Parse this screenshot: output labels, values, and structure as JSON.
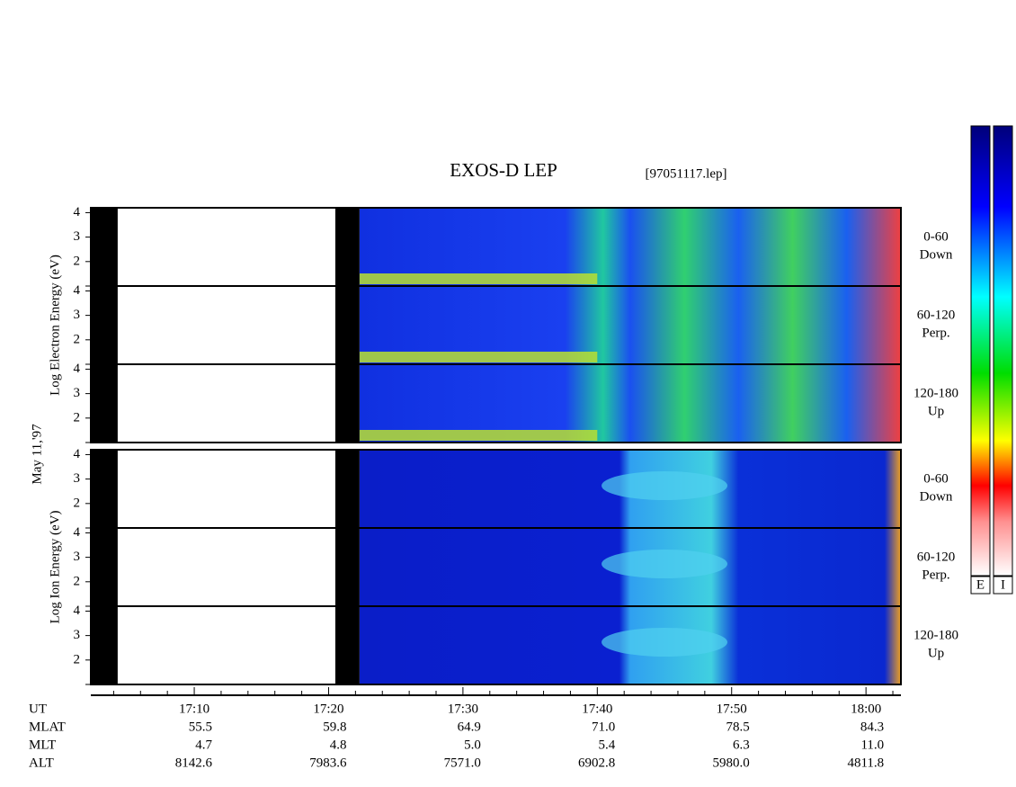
{
  "chart_data": {
    "type": "spectrogram",
    "title": "EXOS-D LEP",
    "file": "[97051117.lep]",
    "date": "May 11,'97",
    "xlim": [
      1022.3,
      1082.6
    ],
    "xticks": [
      {
        "value": 1030,
        "label": "17:10"
      },
      {
        "value": 1040,
        "label": "17:20"
      },
      {
        "value": 1050,
        "label": "17:30"
      },
      {
        "value": 1060,
        "label": "17:40"
      },
      {
        "value": 1070,
        "label": "17:50"
      },
      {
        "value": 1080,
        "label": "18:00"
      }
    ],
    "xminor": [
      1024,
      1026,
      1028,
      1032,
      1034,
      1036,
      1038,
      1042,
      1044,
      1046,
      1048,
      1052,
      1054,
      1056,
      1058,
      1062,
      1064,
      1066,
      1068,
      1072,
      1074,
      1076,
      1078,
      1082
    ],
    "ephemeris": [
      {
        "name": "UT"
      },
      {
        "name": "MLAT",
        "values": [
          "55.5",
          "59.8",
          "64.9",
          "71.0",
          "78.5",
          "84.3"
        ]
      },
      {
        "name": "MLT",
        "values": [
          "4.7",
          "4.8",
          "5.0",
          "5.4",
          "6.3",
          "11.0"
        ]
      },
      {
        "name": "ALT",
        "values": [
          "8142.6",
          "7983.6",
          "7571.0",
          "6902.8",
          "5980.0",
          "4811.8"
        ]
      }
    ],
    "ylim": [
      1,
      4.2
    ],
    "yticks": [
      2,
      3,
      4
    ],
    "gaps": [
      [
        1022.3,
        1024.3
      ],
      [
        1040.5,
        1042.3
      ]
    ],
    "groups": [
      {
        "ylabel": "Log  Electron  Energy (eV)",
        "species": "electron",
        "panels": [
          {
            "angle": "0-60",
            "direction": "Down"
          },
          {
            "angle": "60-120",
            "direction": "Perp."
          },
          {
            "angle": "120-180",
            "direction": "Up"
          }
        ]
      },
      {
        "ylabel": "Log  Ion  Energy (eV)",
        "species": "ion",
        "panels": [
          {
            "angle": "0-60",
            "direction": "Down"
          },
          {
            "angle": "60-120",
            "direction": "Perp."
          },
          {
            "angle": "120-180",
            "direction": "Up"
          }
        ]
      }
    ],
    "colorbars": [
      "E",
      "I"
    ]
  }
}
